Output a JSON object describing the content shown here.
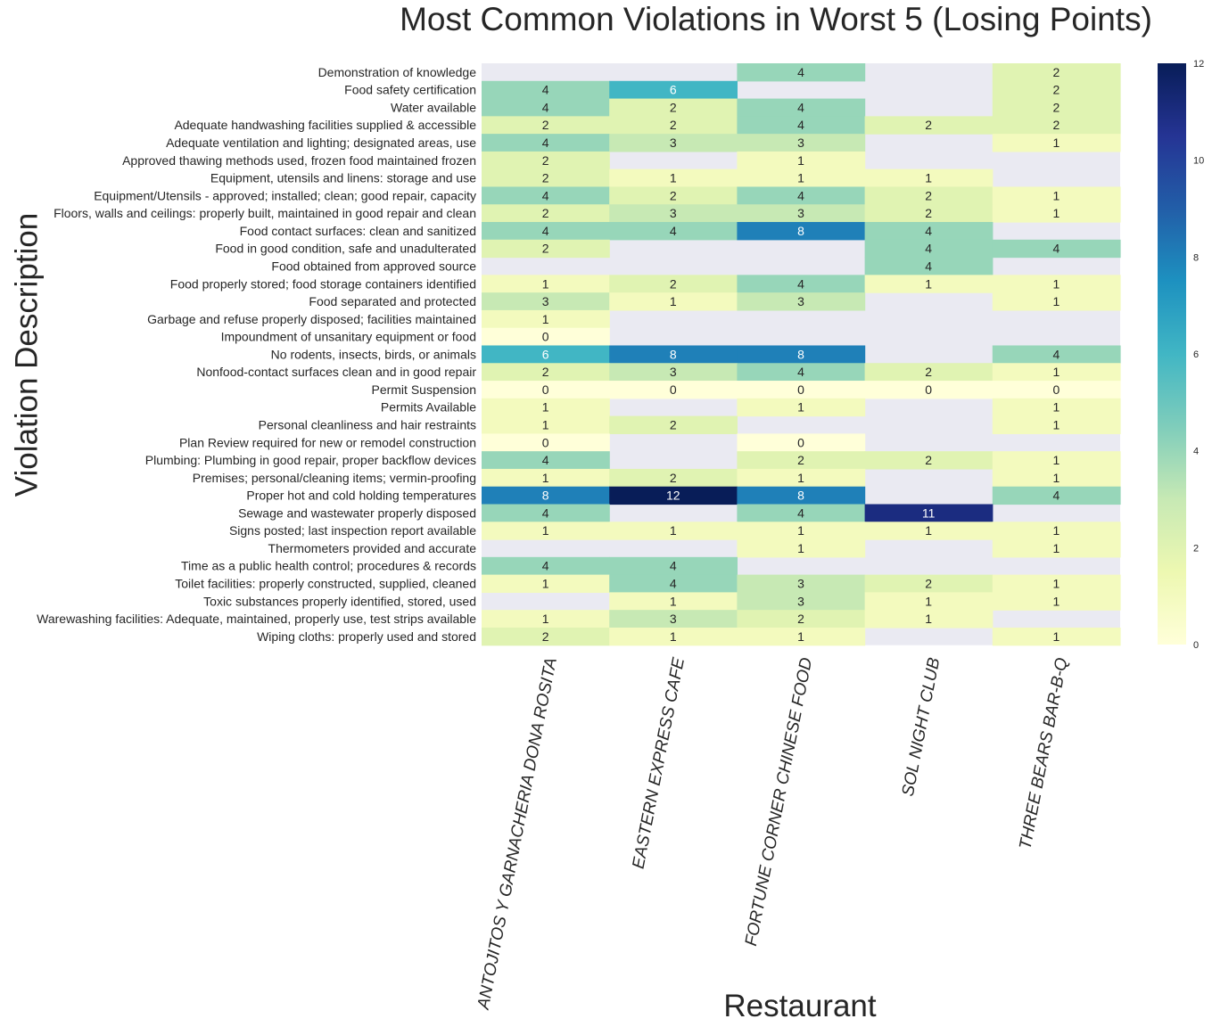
{
  "chart_data": {
    "type": "heatmap",
    "title": "Most Common Violations in Worst 5 (Losing Points)",
    "xlabel": "Restaurant",
    "ylabel": "Violation Description",
    "columns": [
      "ANTOJITOS Y GARNACHERIA DONA ROSITA",
      "EASTERN EXPRESS CAFE",
      "FORTUNE CORNER CHINESE FOOD",
      "SOL NIGHT CLUB",
      "THREE BEARS BAR-B-Q"
    ],
    "rows": [
      "Demonstration of knowledge",
      "Food safety certification",
      "Water available",
      "Adequate handwashing facilities supplied & accessible",
      "Adequate ventilation and lighting; designated areas, use",
      "Approved thawing methods used, frozen food maintained frozen",
      "Equipment, utensils and linens: storage and use",
      "Equipment/Utensils - approved; installed; clean; good repair, capacity",
      "Floors, walls and ceilings: properly built, maintained in good repair and clean",
      "Food contact surfaces: clean and sanitized",
      "Food in good condition, safe and unadulterated",
      "Food obtained from approved source",
      "Food properly stored; food storage containers identified",
      "Food separated and protected",
      "Garbage and refuse properly disposed; facilities maintained",
      "Impoundment of unsanitary equipment or food",
      "No rodents, insects, birds, or animals",
      "Nonfood-contact surfaces clean and in good repair",
      "Permit Suspension",
      "Permits Available",
      "Personal cleanliness and hair restraints",
      "Plan Review required for new or remodel construction",
      "Plumbing: Plumbing in good repair, proper backflow devices",
      "Premises; personal/cleaning items; vermin-proofing",
      "Proper hot and cold holding temperatures",
      "Sewage and wastewater properly disposed",
      "Signs posted; last inspection report available",
      "Thermometers provided and accurate",
      "Time as a public health control; procedures & records",
      "Toilet facilities: properly constructed, supplied, cleaned",
      "Toxic substances properly identified, stored, used",
      "Warewashing facilities: Adequate, maintained, properly use, test strips available",
      "Wiping cloths: properly used and stored"
    ],
    "values": [
      [
        null,
        null,
        4,
        null,
        2
      ],
      [
        4,
        6,
        null,
        null,
        2
      ],
      [
        4,
        2,
        4,
        null,
        2
      ],
      [
        2,
        2,
        4,
        2,
        2
      ],
      [
        4,
        3,
        3,
        null,
        1
      ],
      [
        2,
        null,
        1,
        null,
        null
      ],
      [
        2,
        1,
        1,
        1,
        null
      ],
      [
        4,
        2,
        4,
        2,
        1
      ],
      [
        2,
        3,
        3,
        2,
        1
      ],
      [
        4,
        4,
        8,
        4,
        null
      ],
      [
        2,
        null,
        null,
        4,
        4
      ],
      [
        null,
        null,
        null,
        4,
        null
      ],
      [
        1,
        2,
        4,
        1,
        1
      ],
      [
        3,
        1,
        3,
        null,
        1
      ],
      [
        1,
        null,
        null,
        null,
        null
      ],
      [
        0,
        null,
        null,
        null,
        null
      ],
      [
        6,
        8,
        8,
        null,
        4
      ],
      [
        2,
        3,
        4,
        2,
        1
      ],
      [
        0,
        0,
        0,
        0,
        0
      ],
      [
        1,
        null,
        1,
        null,
        1
      ],
      [
        1,
        2,
        null,
        null,
        1
      ],
      [
        0,
        null,
        0,
        null,
        null
      ],
      [
        4,
        null,
        2,
        2,
        1
      ],
      [
        1,
        2,
        1,
        null,
        1
      ],
      [
        8,
        12,
        8,
        null,
        4
      ],
      [
        4,
        null,
        4,
        11,
        null
      ],
      [
        1,
        1,
        1,
        1,
        1
      ],
      [
        null,
        null,
        1,
        null,
        1
      ],
      [
        4,
        4,
        null,
        null,
        null
      ],
      [
        1,
        4,
        3,
        2,
        1
      ],
      [
        null,
        1,
        3,
        1,
        1
      ],
      [
        1,
        3,
        2,
        1,
        null
      ],
      [
        2,
        1,
        1,
        null,
        1
      ]
    ],
    "colorbar": {
      "min": 0,
      "max": 12,
      "ticks": [
        0,
        2,
        4,
        6,
        8,
        10,
        12
      ],
      "colormap": "YlGnBu"
    },
    "missing_color": "#eaeaf2",
    "grid": false
  }
}
